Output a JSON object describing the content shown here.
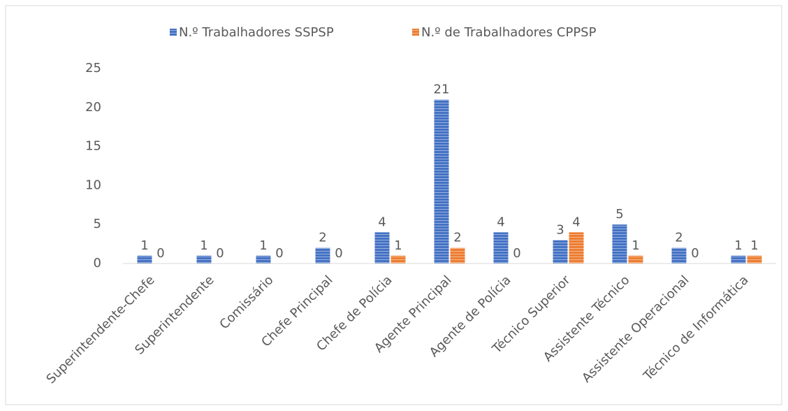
{
  "chart_data": {
    "type": "bar",
    "categories": [
      "Superintendente-Chefe",
      "Superintendente",
      "Comissário",
      "Chefe Principal",
      "Chefe de Polícia",
      "Agente Principal",
      "Agente de Polícia",
      "Técnico Superior",
      "Assistente Técnico",
      "Assistente Operacional",
      "Técnico de Informática"
    ],
    "series": [
      {
        "name": "N.º Trabalhadores SSPSP",
        "color": "#4472c4",
        "values": [
          1,
          1,
          1,
          2,
          4,
          21,
          4,
          3,
          5,
          2,
          1
        ]
      },
      {
        "name": "N.º de Trabalhadores CPPSP",
        "color": "#ed7d31",
        "values": [
          0,
          0,
          0,
          0,
          1,
          2,
          0,
          4,
          1,
          0,
          1
        ]
      }
    ],
    "ylim": [
      0,
      25
    ],
    "yticks": [
      0,
      5,
      10,
      15,
      20,
      25
    ],
    "grid": false,
    "legend": "top"
  }
}
